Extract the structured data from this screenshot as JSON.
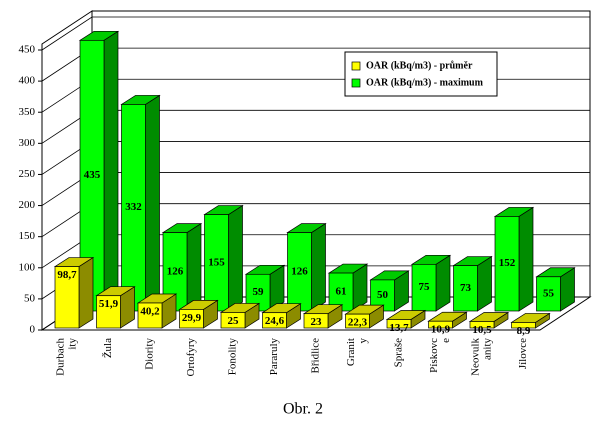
{
  "chart_data": {
    "type": "bar3d",
    "categories": [
      [
        "Durbach",
        "ity"
      ],
      [
        "Žula"
      ],
      [
        "Diority"
      ],
      [
        "Ortofyry"
      ],
      [
        "Fonolity"
      ],
      [
        "Pararuly"
      ],
      [
        "Břidlice"
      ],
      [
        "Granit",
        "y"
      ],
      [
        "Spraše"
      ],
      [
        "Pískovc",
        "e"
      ],
      [
        "Neovulk",
        "anity"
      ],
      [
        "Jílovce"
      ]
    ],
    "series": [
      {
        "name": "OAR (kBq/m3) - průměr",
        "color": "#ffff00",
        "values": [
          98.7,
          51.9,
          40.2,
          29.9,
          25,
          24.6,
          23,
          22.3,
          13.7,
          10.9,
          10.5,
          8.9
        ],
        "value_labels": [
          "98,7",
          "51,9",
          "40,2",
          "29,9",
          "25",
          "24,6",
          "23",
          "22,3",
          "13,7",
          "10,9",
          "10,5",
          "8,9"
        ]
      },
      {
        "name": "OAR (kBq/m3) - maximum",
        "color": "#00ff00",
        "values": [
          435,
          332,
          126,
          155,
          59,
          126,
          61,
          50,
          75,
          73,
          152,
          55
        ]
      }
    ],
    "ylim": [
      0,
      450
    ],
    "yticks": [
      0,
      50,
      100,
      150,
      200,
      250,
      300,
      350,
      400,
      450
    ],
    "grid": true,
    "legend": "top-right",
    "caption": "Obr. 2"
  }
}
